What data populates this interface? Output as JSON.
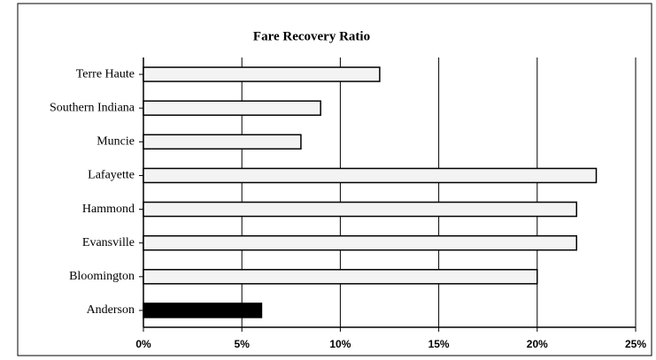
{
  "chart_data": {
    "type": "hbar",
    "title": "Fare Recovery Ratio",
    "categories": [
      "Terre Haute",
      "Southern Indiana",
      "Muncie",
      "Lafayette",
      "Hammond",
      "Evansville",
      "Bloomington",
      "Anderson"
    ],
    "values": [
      12,
      9,
      8,
      23,
      22,
      22,
      20,
      6
    ],
    "colors": [
      "#f3f3f3",
      "#f3f3f3",
      "#f3f3f3",
      "#f3f3f3",
      "#f3f3f3",
      "#f3f3f3",
      "#f3f3f3",
      "#000000"
    ],
    "xlim": [
      0,
      25
    ],
    "xticks": [
      {
        "value": 0,
        "label": "0%"
      },
      {
        "value": 5,
        "label": "5%"
      },
      {
        "value": 10,
        "label": "10%"
      },
      {
        "value": 15,
        "label": "15%"
      },
      {
        "value": 20,
        "label": "20%"
      },
      {
        "value": 25,
        "label": "25%"
      }
    ],
    "grid": true
  }
}
